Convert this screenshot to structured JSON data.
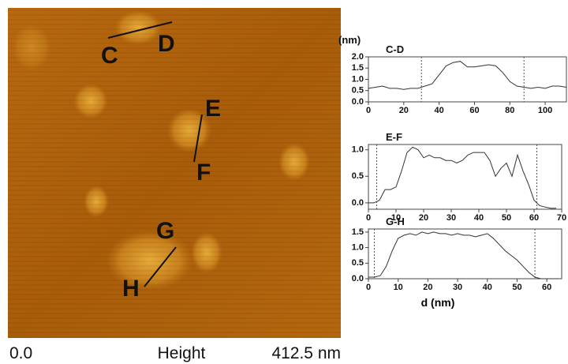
{
  "image": {
    "labels": [
      "C",
      "D",
      "E",
      "F",
      "G",
      "H"
    ],
    "scale": {
      "min": "0.0",
      "title": "Height",
      "max": "412.5 nm"
    }
  },
  "x_label": "d (nm)",
  "chart_data": [
    {
      "type": "line",
      "title": "C-D",
      "ylabel": "(nm)",
      "color": "#333333",
      "x": [
        0,
        4,
        8,
        12,
        16,
        20,
        24,
        28,
        32,
        36,
        40,
        44,
        48,
        52,
        56,
        60,
        64,
        68,
        72,
        76,
        80,
        84,
        88,
        92,
        96,
        100,
        104,
        108,
        112
      ],
      "values": [
        0.6,
        0.65,
        0.7,
        0.6,
        0.6,
        0.55,
        0.6,
        0.6,
        0.7,
        0.8,
        1.2,
        1.6,
        1.75,
        1.8,
        1.55,
        1.55,
        1.6,
        1.65,
        1.6,
        1.3,
        0.9,
        0.7,
        0.65,
        0.6,
        0.65,
        0.6,
        0.7,
        0.7,
        0.65
      ],
      "xlim": [
        0,
        112
      ],
      "xticks": [
        0,
        20,
        40,
        60,
        80,
        100
      ],
      "ylim": [
        0,
        2.0
      ],
      "yticks": [
        {
          "value": 0,
          "label": "0.0"
        },
        0.5,
        {
          "value": 1,
          "label": "1.0"
        },
        1.5,
        {
          "value": 2,
          "label": "2.0"
        }
      ],
      "markers": [
        30,
        88
      ]
    },
    {
      "type": "line",
      "title": "E-F",
      "color": "#333333",
      "x": [
        0,
        2,
        4,
        6,
        8,
        10,
        12,
        14,
        16,
        18,
        20,
        22,
        24,
        26,
        28,
        30,
        32,
        34,
        36,
        38,
        40,
        42,
        44,
        46,
        48,
        50,
        52,
        54,
        56,
        58,
        60,
        62,
        64,
        66,
        68
      ],
      "values": [
        0.0,
        0.0,
        0.05,
        0.25,
        0.25,
        0.3,
        0.6,
        0.95,
        1.05,
        1.0,
        0.85,
        0.9,
        0.85,
        0.85,
        0.8,
        0.8,
        0.75,
        0.8,
        0.9,
        0.95,
        0.95,
        0.95,
        0.8,
        0.5,
        0.65,
        0.75,
        0.5,
        0.9,
        0.6,
        0.35,
        0.05,
        -0.05,
        -0.08,
        -0.1,
        -0.1
      ],
      "xlim": [
        0,
        70
      ],
      "xticks": [
        0,
        10,
        20,
        30,
        40,
        50,
        60,
        70
      ],
      "ylim": [
        -0.12,
        1.1
      ],
      "yticks": [
        {
          "value": 0,
          "label": "0.0"
        },
        0.5,
        {
          "value": 1,
          "label": "1.0"
        }
      ],
      "markers": [
        3,
        61
      ]
    },
    {
      "type": "line",
      "title": "G-H",
      "color": "#333333",
      "x": [
        0,
        2,
        4,
        6,
        8,
        10,
        12,
        14,
        16,
        18,
        20,
        22,
        24,
        26,
        28,
        30,
        32,
        34,
        36,
        38,
        40,
        42,
        44,
        46,
        48,
        50,
        52,
        54,
        56,
        58,
        60,
        62,
        64
      ],
      "values": [
        0.05,
        0.05,
        0.1,
        0.4,
        0.9,
        1.3,
        1.4,
        1.45,
        1.4,
        1.5,
        1.45,
        1.5,
        1.45,
        1.45,
        1.4,
        1.45,
        1.4,
        1.4,
        1.35,
        1.4,
        1.45,
        1.3,
        1.1,
        0.9,
        0.75,
        0.6,
        0.4,
        0.2,
        0.05,
        0.0,
        0.0,
        0.0,
        0.0
      ],
      "xlim": [
        0,
        65
      ],
      "xticks": [
        0,
        10,
        20,
        30,
        40,
        50,
        60
      ],
      "ylim": [
        0,
        1.6
      ],
      "yticks": [
        {
          "value": 0,
          "label": "0.0"
        },
        0.5,
        {
          "value": 1,
          "label": "1.0"
        },
        1.5
      ],
      "markers": [
        2,
        56
      ]
    }
  ]
}
